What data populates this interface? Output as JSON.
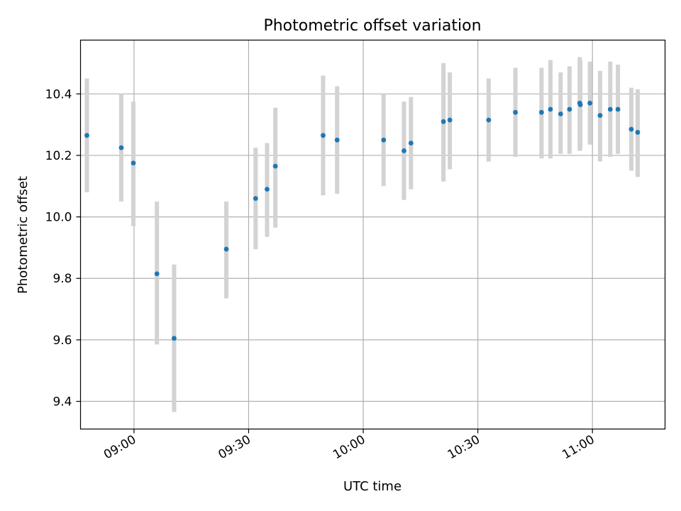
{
  "chart_data": {
    "type": "scatter",
    "title": "Photometric offset variation",
    "xlabel": "UTC time",
    "ylabel": "Photometric offset",
    "x_axis": "time",
    "xlim": [
      "08:46",
      "11:19"
    ],
    "ylim": [
      9.31,
      10.575
    ],
    "x_ticks": [
      "09:00",
      "09:30",
      "10:00",
      "10:30",
      "11:00"
    ],
    "y_ticks": [
      9.4,
      9.6,
      9.8,
      10.0,
      10.2,
      10.4
    ],
    "y_tick_labels": [
      "9.4",
      "9.6",
      "9.8",
      "10.0",
      "10.2",
      "10.4"
    ],
    "grid": true,
    "colors": {
      "marker": "#1f77b4",
      "errorbar": "#d3d3d3",
      "grid": "#b0b0b0"
    },
    "points": [
      {
        "x": "08:47:40",
        "y": 10.265,
        "y_low": 10.08,
        "y_high": 10.45
      },
      {
        "x": "08:56:40",
        "y": 10.225,
        "y_low": 10.05,
        "y_high": 10.4
      },
      {
        "x": "08:59:50",
        "y": 10.175,
        "y_low": 9.97,
        "y_high": 10.375
      },
      {
        "x": "09:06:00",
        "y": 9.815,
        "y_low": 9.585,
        "y_high": 10.05
      },
      {
        "x": "09:10:30",
        "y": 9.605,
        "y_low": 9.365,
        "y_high": 9.845
      },
      {
        "x": "09:24:10",
        "y": 9.895,
        "y_low": 9.735,
        "y_high": 10.05
      },
      {
        "x": "09:31:50",
        "y": 10.06,
        "y_low": 9.895,
        "y_high": 10.225
      },
      {
        "x": "09:34:50",
        "y": 10.09,
        "y_low": 9.935,
        "y_high": 10.24
      },
      {
        "x": "09:37:00",
        "y": 10.165,
        "y_low": 9.965,
        "y_high": 10.355
      },
      {
        "x": "09:49:30",
        "y": 10.265,
        "y_low": 10.07,
        "y_high": 10.46
      },
      {
        "x": "09:53:10",
        "y": 10.25,
        "y_low": 10.075,
        "y_high": 10.425
      },
      {
        "x": "10:05:20",
        "y": 10.25,
        "y_low": 10.1,
        "y_high": 10.4
      },
      {
        "x": "10:10:40",
        "y": 10.215,
        "y_low": 10.055,
        "y_high": 10.375
      },
      {
        "x": "10:12:30",
        "y": 10.24,
        "y_low": 10.09,
        "y_high": 10.39
      },
      {
        "x": "10:21:00",
        "y": 10.31,
        "y_low": 10.115,
        "y_high": 10.5
      },
      {
        "x": "10:22:40",
        "y": 10.315,
        "y_low": 10.155,
        "y_high": 10.47
      },
      {
        "x": "10:32:50",
        "y": 10.315,
        "y_low": 10.18,
        "y_high": 10.45
      },
      {
        "x": "10:39:50",
        "y": 10.34,
        "y_low": 10.195,
        "y_high": 10.485
      },
      {
        "x": "10:46:40",
        "y": 10.34,
        "y_low": 10.19,
        "y_high": 10.485
      },
      {
        "x": "10:49:00",
        "y": 10.35,
        "y_low": 10.19,
        "y_high": 10.51
      },
      {
        "x": "10:51:40",
        "y": 10.335,
        "y_low": 10.205,
        "y_high": 10.47
      },
      {
        "x": "10:54:00",
        "y": 10.35,
        "y_low": 10.205,
        "y_high": 10.49
      },
      {
        "x": "10:56:40",
        "y": 10.37,
        "y_low": 10.215,
        "y_high": 10.52
      },
      {
        "x": "10:56:50",
        "y": 10.365,
        "y_low": 10.22,
        "y_high": 10.51
      },
      {
        "x": "10:59:20",
        "y": 10.37,
        "y_low": 10.235,
        "y_high": 10.505
      },
      {
        "x": "11:02:00",
        "y": 10.33,
        "y_low": 10.18,
        "y_high": 10.475
      },
      {
        "x": "11:04:40",
        "y": 10.35,
        "y_low": 10.195,
        "y_high": 10.505
      },
      {
        "x": "11:06:40",
        "y": 10.35,
        "y_low": 10.205,
        "y_high": 10.495
      },
      {
        "x": "11:10:10",
        "y": 10.285,
        "y_low": 10.15,
        "y_high": 10.42
      },
      {
        "x": "11:11:50",
        "y": 10.275,
        "y_low": 10.13,
        "y_high": 10.415
      }
    ]
  }
}
